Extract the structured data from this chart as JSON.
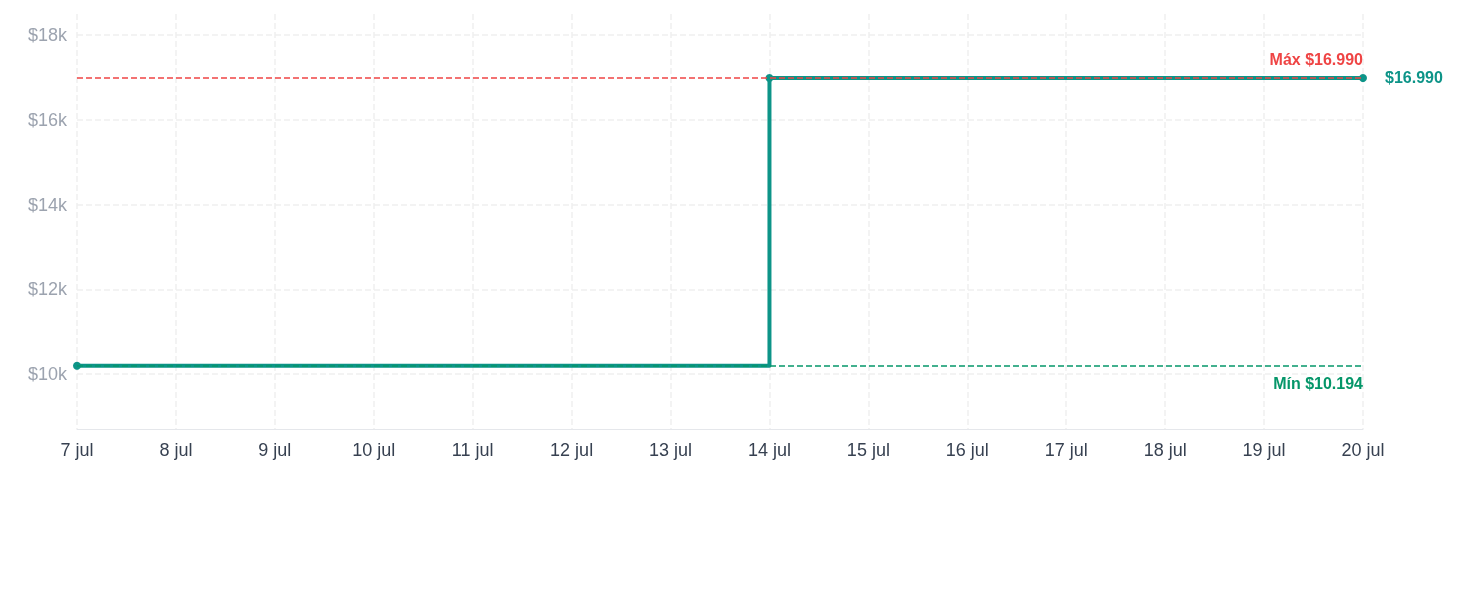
{
  "chart_data": {
    "type": "step",
    "x": [
      "--07-07",
      "--07-14",
      "--07-20"
    ],
    "series": [
      {
        "color": "#0d9488",
        "values": [
          10194,
          16990,
          16990
        ],
        "value_labels": [
          null,
          null,
          "$16.990"
        ]
      }
    ],
    "xlim": [
      "--07-07",
      "--07-20"
    ],
    "xticks": [
      {
        "value": "--07-07",
        "label": "7 jul"
      },
      {
        "value": "--07-08",
        "label": "8 jul"
      },
      {
        "value": "--07-09",
        "label": "9 jul"
      },
      {
        "value": "--07-10",
        "label": "10 jul"
      },
      {
        "value": "--07-11",
        "label": "11 jul"
      },
      {
        "value": "--07-12",
        "label": "12 jul"
      },
      {
        "value": "--07-13",
        "label": "13 jul"
      },
      {
        "value": "--07-14",
        "label": "14 jul"
      },
      {
        "value": "--07-15",
        "label": "15 jul"
      },
      {
        "value": "--07-16",
        "label": "16 jul"
      },
      {
        "value": "--07-17",
        "label": "17 jul"
      },
      {
        "value": "--07-18",
        "label": "18 jul"
      },
      {
        "value": "--07-19",
        "label": "19 jul"
      },
      {
        "value": "--07-20",
        "label": "20 jul"
      }
    ],
    "ylim": [
      8700,
      18500
    ],
    "yticks": [
      {
        "value": 10000,
        "label": "$10k"
      },
      {
        "value": 12000,
        "label": "$12k"
      },
      {
        "value": 14000,
        "label": "$14k"
      },
      {
        "value": 16000,
        "label": "$16k"
      },
      {
        "value": 18000,
        "label": "$18k"
      }
    ],
    "ref_lines": [
      {
        "axis": "y",
        "value": 16990,
        "label": "Máx $16.990",
        "color": "#ef4444",
        "line_style": "dashed"
      },
      {
        "axis": "y",
        "value": 10194,
        "label": "Mín $10.194",
        "color": "#059669",
        "line_style": "dashed"
      }
    ],
    "grid": true,
    "marker": "circle",
    "line_style": "solid"
  }
}
